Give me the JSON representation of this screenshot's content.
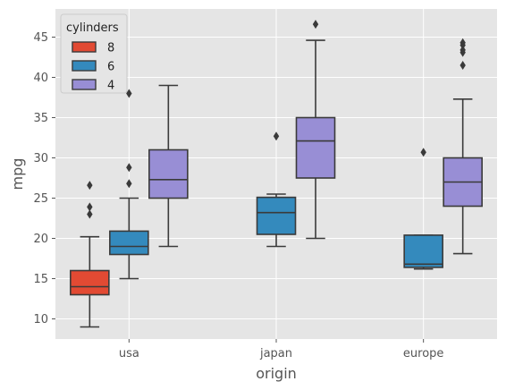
{
  "chart_data": {
    "type": "box",
    "xlabel": "origin",
    "ylabel": "mpg",
    "categories": [
      "usa",
      "japan",
      "europe"
    ],
    "ylim": [
      7.5,
      48.5
    ],
    "yticks": [
      10,
      15,
      20,
      25,
      30,
      35,
      40,
      45
    ],
    "grid": true,
    "legend": {
      "title": "cylinders",
      "placement": "top-left"
    },
    "series": [
      {
        "name": "8",
        "color": "#E24A33",
        "boxes": [
          {
            "category": "usa",
            "whisker_low": 9,
            "q1": 13,
            "median": 14,
            "q3": 16,
            "whisker_high": 20.2,
            "outliers": [
              23,
              23.9,
              26.6
            ]
          }
        ]
      },
      {
        "name": "6",
        "color": "#348ABD",
        "boxes": [
          {
            "category": "usa",
            "whisker_low": 15,
            "q1": 18,
            "median": 19,
            "q3": 20.9,
            "whisker_high": 25,
            "outliers": [
              26.8,
              28.8,
              38
            ]
          },
          {
            "category": "japan",
            "whisker_low": 19,
            "q1": 20.5,
            "median": 23.2,
            "q3": 25.1,
            "whisker_high": 25.5,
            "outliers": [
              32.7
            ]
          },
          {
            "category": "europe",
            "whisker_low": 16.2,
            "q1": 16.4,
            "median": 16.8,
            "q3": 20.4,
            "whisker_high": 20.4,
            "outliers": [
              30.7
            ]
          }
        ]
      },
      {
        "name": "4",
        "color": "#988ED5",
        "boxes": [
          {
            "category": "usa",
            "whisker_low": 19,
            "q1": 25,
            "median": 27.3,
            "q3": 31,
            "whisker_high": 39,
            "outliers": []
          },
          {
            "category": "japan",
            "whisker_low": 20,
            "q1": 27.5,
            "median": 32.1,
            "q3": 35,
            "whisker_high": 44.6,
            "outliers": [
              46.6
            ]
          },
          {
            "category": "europe",
            "whisker_low": 18.1,
            "q1": 24,
            "median": 27,
            "q3": 30,
            "whisker_high": 37.3,
            "outliers": [
              41.5,
              43.1,
              43.4,
              44,
              44.3
            ]
          }
        ]
      }
    ]
  }
}
